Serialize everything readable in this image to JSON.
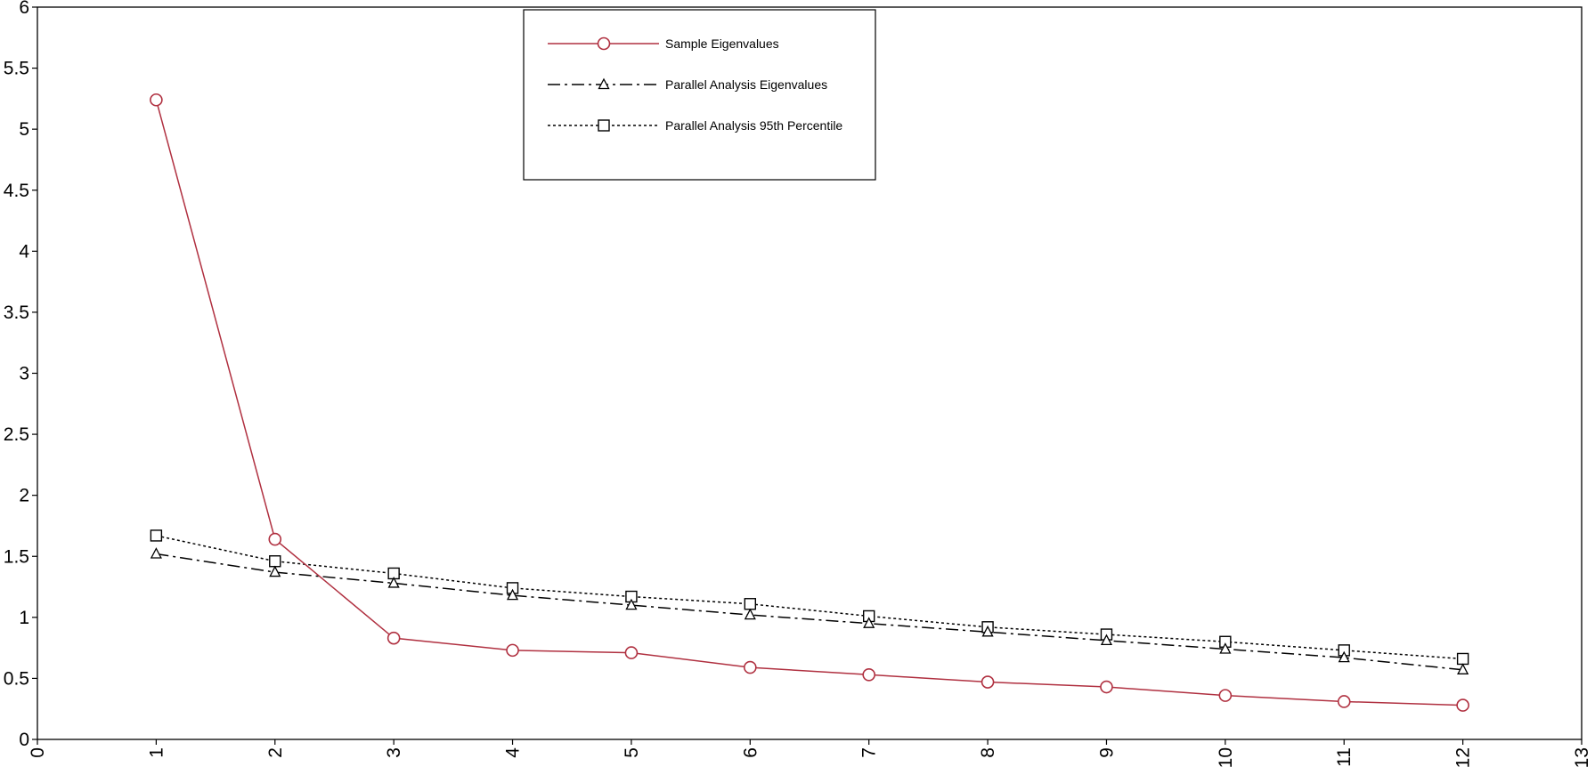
{
  "chart_data": {
    "type": "line",
    "title": "",
    "xlabel": "",
    "ylabel": "",
    "xlim": [
      0,
      13
    ],
    "ylim": [
      0,
      6
    ],
    "x_ticks": [
      "0",
      "1",
      "2",
      "3",
      "4",
      "5",
      "6",
      "7",
      "8",
      "9",
      "10",
      "11",
      "12",
      "13"
    ],
    "y_ticks": [
      "0",
      "0.5",
      "1",
      "1.5",
      "2",
      "2.5",
      "3",
      "3.5",
      "4",
      "4.5",
      "5",
      "5.5",
      "6"
    ],
    "grid": false,
    "legend_position": "top-center",
    "x": [
      1,
      2,
      3,
      4,
      5,
      6,
      7,
      8,
      9,
      10,
      11,
      12
    ],
    "series": [
      {
        "name": "Sample Eigenvalues",
        "color": "#b03040",
        "marker": "circle",
        "line_style": "solid",
        "values": [
          5.24,
          1.64,
          0.83,
          0.73,
          0.71,
          0.59,
          0.53,
          0.47,
          0.43,
          0.36,
          0.31,
          0.28
        ]
      },
      {
        "name": "Parallel Analysis Eigenvalues",
        "color": "#000000",
        "marker": "triangle",
        "line_style": "dash-dot",
        "values": [
          1.52,
          1.37,
          1.28,
          1.18,
          1.1,
          1.02,
          0.95,
          0.88,
          0.81,
          0.74,
          0.67,
          0.57
        ]
      },
      {
        "name": "Parallel Analysis 95th Percentile",
        "color": "#000000",
        "marker": "square",
        "line_style": "dotted",
        "values": [
          1.67,
          1.46,
          1.36,
          1.24,
          1.17,
          1.11,
          1.01,
          0.92,
          0.86,
          0.8,
          0.73,
          0.66
        ]
      }
    ]
  }
}
